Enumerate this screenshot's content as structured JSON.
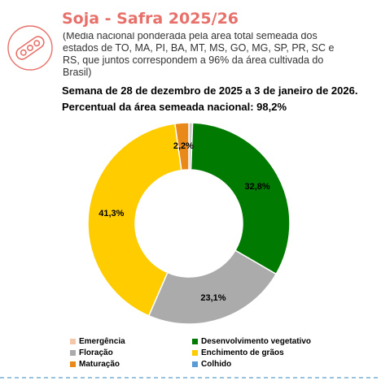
{
  "header": {
    "title": "Soja - Safra 2025/26",
    "subtitle": "(Média nacional ponderada pela área total semeada dos estados de TO, MA, PI, BA, MT, MS, GO, MG, SP, PR, SC e RS, que juntos correspondem a 96% da área cultivada do Brasil)",
    "week": "Semana de 28 de dezembro de 2025 a 3 de janeiro de 2026.",
    "percent": "Percentual da área semeada nacional: 98,2%"
  },
  "colors": {
    "title": "#e8706a",
    "logo": "#e8706a"
  },
  "logo_icon": "soybean-pod-icon",
  "chart_data": {
    "type": "pie",
    "donut": true,
    "title": "",
    "series": [
      {
        "name": "Emergência",
        "value": 0.0,
        "label": "",
        "color": "#f4c7a8"
      },
      {
        "name": "Desenvolvimento vegetativo",
        "value": 32.8,
        "label": "32,8%",
        "color": "#007a00"
      },
      {
        "name": "Floração",
        "value": 23.1,
        "label": "23,1%",
        "color": "#ababab"
      },
      {
        "name": "Enchimento de grãos",
        "value": 41.3,
        "label": "41,3%",
        "color": "#ffcc00"
      },
      {
        "name": "Maturação",
        "value": 2.2,
        "label": "2,2%",
        "color": "#e8891a"
      },
      {
        "name": "Colhido",
        "value": 0.0,
        "label": "",
        "color": "#5b9bd5"
      }
    ],
    "start_offset": 0.6,
    "legend_position": "bottom"
  }
}
